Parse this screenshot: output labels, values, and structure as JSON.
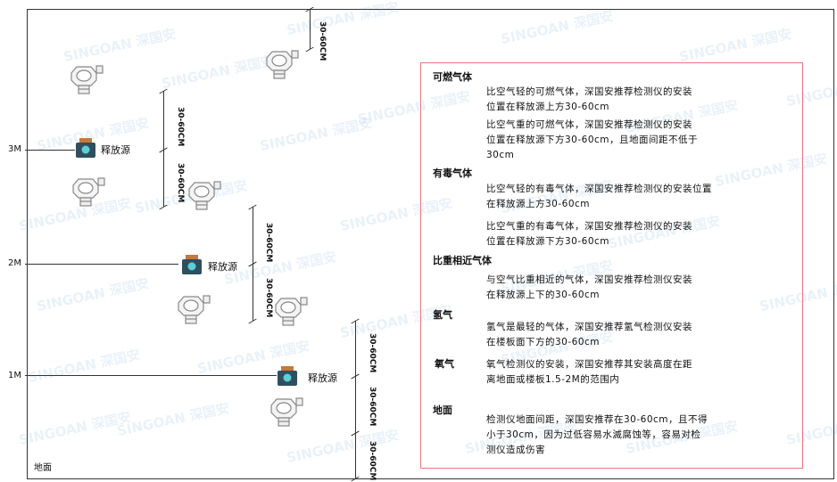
{
  "watermark": "SINGOAN 深国安",
  "levels": {
    "m3": "3M",
    "m2": "2M",
    "m1": "1M",
    "ground": "地面"
  },
  "source_label": "释放源",
  "dimension_label": "30-60CM",
  "panel": {
    "sections": [
      {
        "heading": "可燃气体",
        "paragraphs": [
          [
            "比空气轻的可燃气体，深国安推荐检测仪的安装",
            "位置在释放源上方30-60cm"
          ],
          [
            "比空气重的可燃气体，深国安推荐检测仪的安装",
            "位置在释放源下方30-60cm，且地面间距不低于",
            "30cm"
          ]
        ]
      },
      {
        "heading": "有毒气体",
        "paragraphs": [
          [
            "比空气轻的有毒气体，深国安推荐检测仪的安装位置",
            "在释放源上方30-60cm"
          ],
          [
            "比空气重的有毒气体，深国安推荐检测仪的安装",
            "位置在释放源下方30-60cm"
          ]
        ]
      },
      {
        "heading": "比重相近气体",
        "paragraphs": [
          [
            "与空气比重相近的气体，深国安推荐检测仪安装",
            "在释放源上下的30-60cm"
          ]
        ]
      },
      {
        "heading": "氢气",
        "paragraphs": [
          [
            "氢气是最轻的气体，深国安推荐氢气检测仪安装",
            "在楼板面下方的30-60cm"
          ]
        ]
      },
      {
        "heading": "氧气",
        "paragraphs": [
          [
            "氧气检测仪的安装，深国安推荐其安装高度在距",
            "离地面或楼板1.5-2M的范围内"
          ]
        ]
      },
      {
        "heading": "地面",
        "paragraphs": [
          [
            "检测仪地面间距，深国安推荐在30-60cm，且不得",
            "小于30cm，因为过低容易水滅腐蚀等，容易对检",
            "测仪造成伤害"
          ]
        ]
      }
    ]
  },
  "colors": {
    "box_border": "#e8777f",
    "source_body": "#2f4f5f",
    "source_cap": "#c8783a",
    "source_face": "#5ad0d8"
  }
}
